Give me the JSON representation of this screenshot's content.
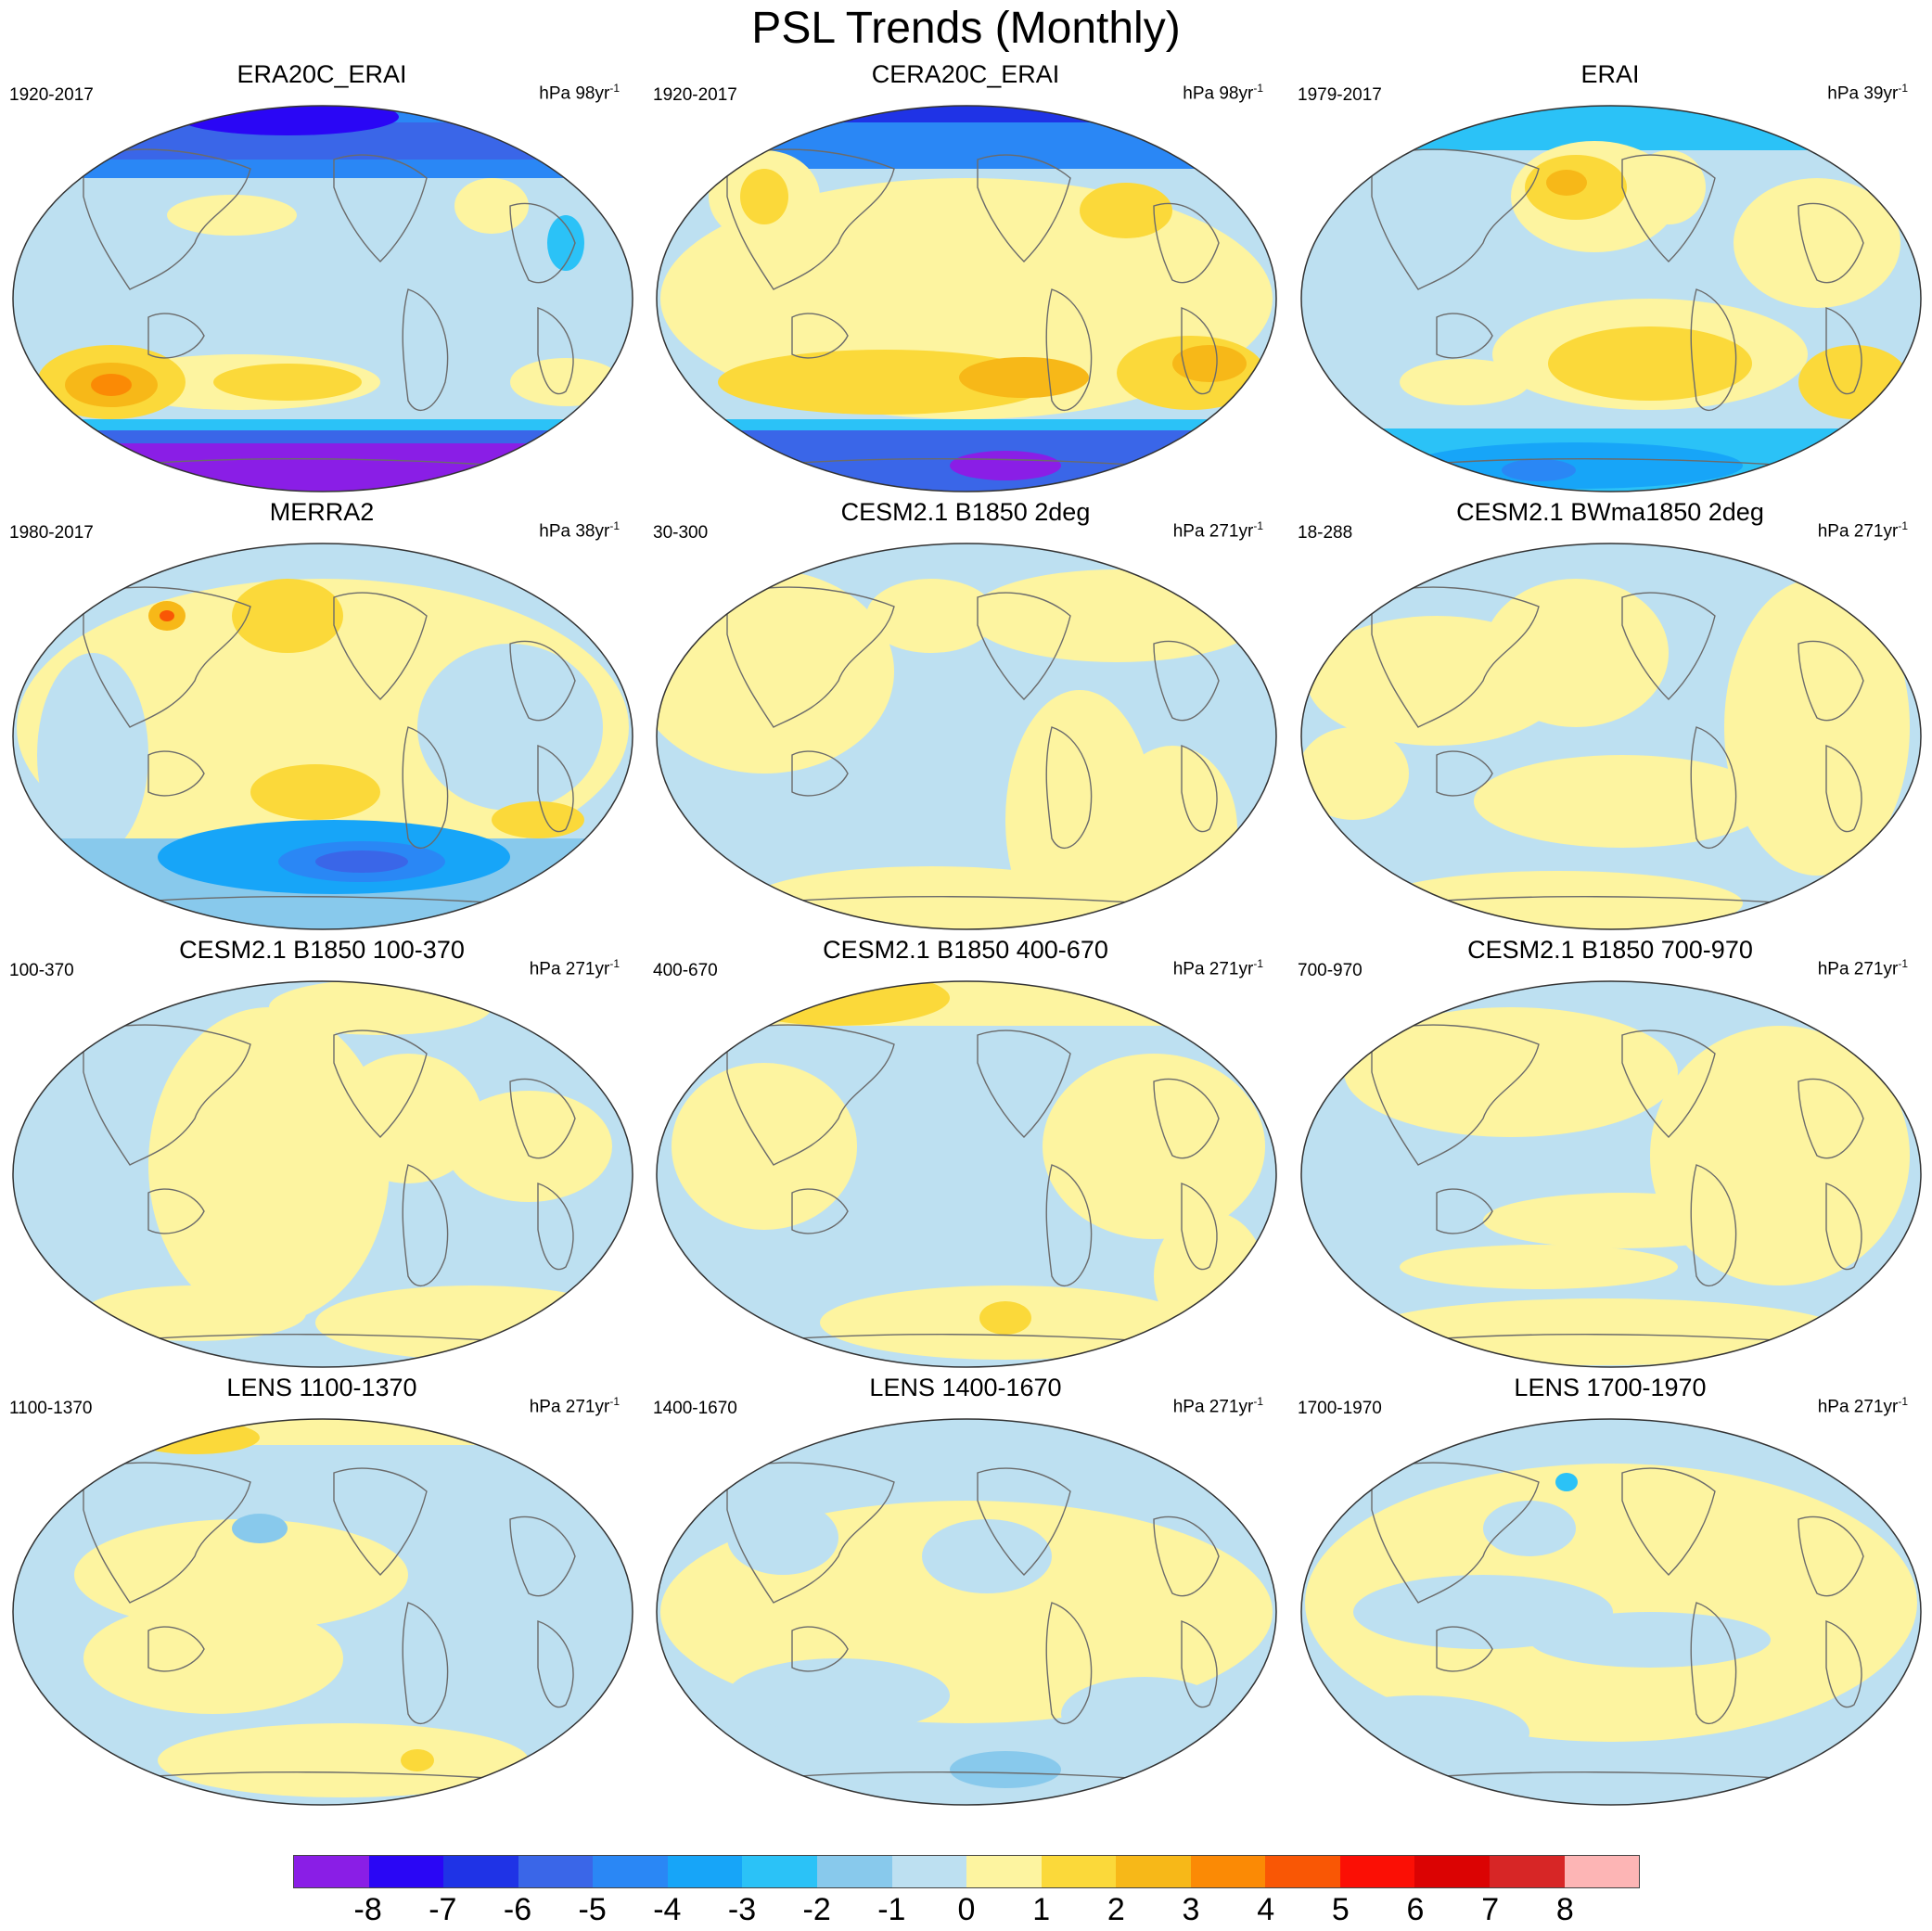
{
  "title": "PSL Trends (Monthly)",
  "panels": [
    {
      "title": "ERA20C_ERAI",
      "period": "1920-2017",
      "units": "hPa 98yr",
      "unit_exp": "-1",
      "pattern": "era20c"
    },
    {
      "title": "CERA20C_ERAI",
      "period": "1920-2017",
      "units": "hPa 98yr",
      "unit_exp": "-1",
      "pattern": "cera20c"
    },
    {
      "title": "ERAI",
      "period": "1979-2017",
      "units": "hPa 39yr",
      "unit_exp": "-1",
      "pattern": "erai"
    },
    {
      "title": "MERRA2",
      "period": "1980-2017",
      "units": "hPa 38yr",
      "unit_exp": "-1",
      "pattern": "merra2"
    },
    {
      "title": "CESM2.1 B1850 2deg",
      "period": "30-300",
      "units": "hPa 271yr",
      "unit_exp": "-1",
      "pattern": "model_a"
    },
    {
      "title": "CESM2.1 BWma1850 2deg",
      "period": "18-288",
      "units": "hPa 271yr",
      "unit_exp": "-1",
      "pattern": "model_b"
    },
    {
      "title": "CESM2.1 B1850 100-370",
      "period": "100-370",
      "units": "hPa 271yr",
      "unit_exp": "-1",
      "pattern": "model_c"
    },
    {
      "title": "CESM2.1 B1850 400-670",
      "period": "400-670",
      "units": "hPa 271yr",
      "unit_exp": "-1",
      "pattern": "model_d"
    },
    {
      "title": "CESM2.1 B1850 700-970",
      "period": "700-970",
      "units": "hPa 271yr",
      "unit_exp": "-1",
      "pattern": "model_e"
    },
    {
      "title": "LENS 1100-1370",
      "period": "1100-1370",
      "units": "hPa 271yr",
      "unit_exp": "-1",
      "pattern": "model_f"
    },
    {
      "title": "LENS 1400-1670",
      "period": "1400-1670",
      "units": "hPa 271yr",
      "unit_exp": "-1",
      "pattern": "model_g"
    },
    {
      "title": "LENS 1700-1970",
      "period": "1700-1970",
      "units": "hPa 271yr",
      "unit_exp": "-1",
      "pattern": "model_h"
    }
  ],
  "colorbar": {
    "labels": [
      "-8",
      "-7",
      "-6",
      "-5",
      "-4",
      "-3",
      "-2",
      "-1",
      "0",
      "1",
      "2",
      "3",
      "4",
      "5",
      "6",
      "7",
      "8"
    ],
    "colors": [
      "#8a1ee6",
      "#2a06f5",
      "#1f33e6",
      "#3a66e8",
      "#2a87f5",
      "#17a5f8",
      "#2bc2f7",
      "#88c9ec",
      "#bde0f1",
      "#fdf4a0",
      "#fbd93a",
      "#f7b818",
      "#fb8a05",
      "#f95705",
      "#fb0f05",
      "#db0303",
      "#d72626",
      "#fdb5b5"
    ]
  }
}
